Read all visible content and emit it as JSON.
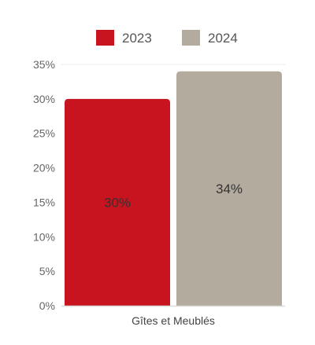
{
  "chart_data": {
    "type": "bar",
    "categories": [
      "Gîtes et Meublés"
    ],
    "series": [
      {
        "name": "2023",
        "values": [
          30
        ],
        "color": "#c8141e",
        "data_label": "30%"
      },
      {
        "name": "2024",
        "values": [
          34
        ],
        "color": "#b3ab9e",
        "data_label": "34%"
      }
    ],
    "y_ticks": [
      "0%",
      "5%",
      "10%",
      "15%",
      "20%",
      "25%",
      "30%",
      "35%"
    ],
    "ylim": [
      0,
      35
    ],
    "grid": false,
    "legend_position": "top",
    "axis_color": "#d9d9d9"
  }
}
